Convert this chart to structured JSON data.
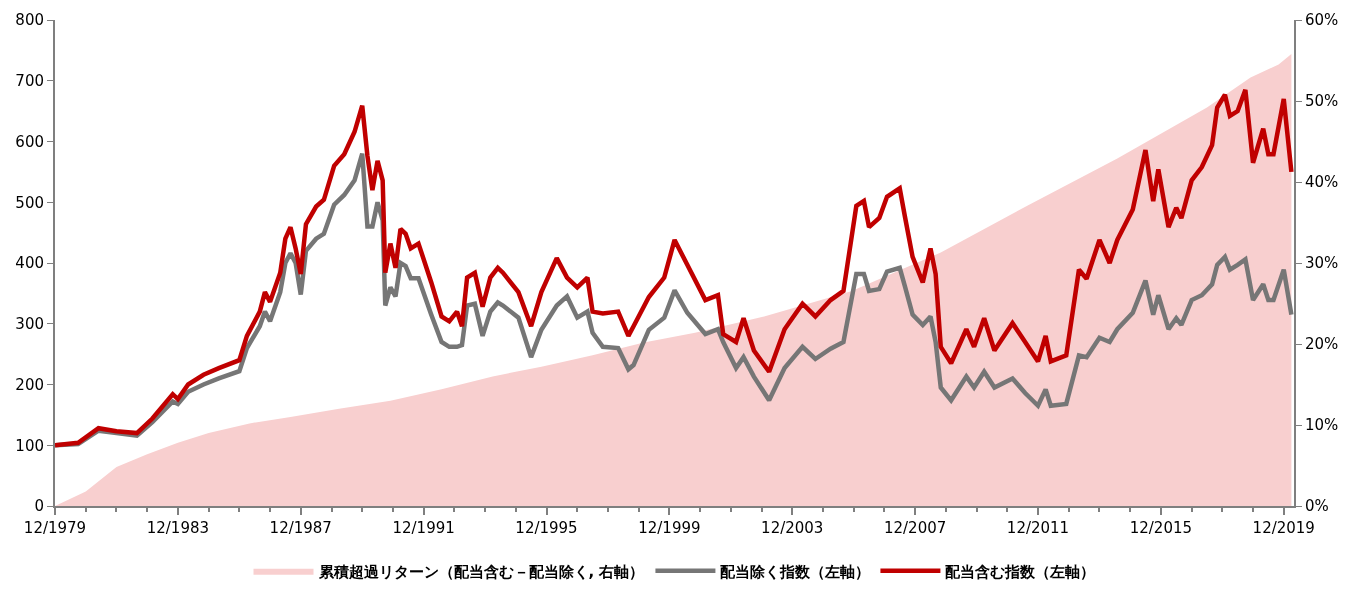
{
  "chart_data": {
    "type": "line",
    "x": [
      "1979-12",
      "1980-09",
      "1981-05",
      "1981-12",
      "1982-08",
      "1983-02",
      "1983-10",
      "1983-12",
      "1984-04",
      "1984-10",
      "1985-04",
      "1985-12",
      "1986-03",
      "1986-08",
      "1986-10",
      "1986-12",
      "1987-04",
      "1987-06",
      "1987-08",
      "1987-10",
      "1987-12",
      "1988-02",
      "1988-06",
      "1988-09",
      "1989-01",
      "1989-05",
      "1989-09",
      "1989-12",
      "1990-02",
      "1990-04",
      "1990-06",
      "1990-08",
      "1990-09",
      "1990-11",
      "1991-01",
      "1991-03",
      "1991-05",
      "1991-07",
      "1991-10",
      "1992-03",
      "1992-07",
      "1992-10",
      "1993-01",
      "1993-03",
      "1993-05",
      "1993-08",
      "1993-11",
      "1994-02",
      "1994-05",
      "1994-07",
      "1995-01",
      "1995-06",
      "1995-10",
      "1996-04",
      "1996-08",
      "1996-12",
      "1997-04",
      "1997-06",
      "1997-10",
      "1998-04",
      "1998-08",
      "1998-10",
      "1999-04",
      "1999-10",
      "2000-02",
      "2000-07",
      "2001-02",
      "2001-07",
      "2001-09",
      "2002-02",
      "2002-05",
      "2002-09",
      "2003-03",
      "2003-09",
      "2004-04",
      "2004-09",
      "2005-03",
      "2005-08",
      "2006-01",
      "2006-04",
      "2006-06",
      "2006-10",
      "2007-01",
      "2007-06",
      "2007-08",
      "2007-11",
      "2008-03",
      "2008-06",
      "2008-08",
      "2008-10",
      "2009-02",
      "2009-08",
      "2009-11",
      "2010-03",
      "2010-07",
      "2011-02",
      "2011-07",
      "2011-12",
      "2012-03",
      "2012-05",
      "2012-11",
      "2013-04",
      "2013-07",
      "2013-12",
      "2014-04",
      "2014-07",
      "2015-01",
      "2015-06",
      "2015-09",
      "2015-11",
      "2016-03",
      "2016-06",
      "2016-08",
      "2016-12",
      "2017-04",
      "2017-08",
      "2017-10",
      "2018-01",
      "2018-03",
      "2018-06",
      "2018-09",
      "2018-12",
      "2019-04",
      "2019-06",
      "2019-08",
      "2019-12",
      "2020-03"
    ],
    "series": [
      {
        "name": "累積超過リターン（配当含む－配当除く, 右軸）",
        "type": "area",
        "axis": "y2",
        "color": "#f8cfcf",
        "x": [
          "1979-12",
          "1980-12",
          "1981-12",
          "1982-12",
          "1983-12",
          "1984-12",
          "1986-04",
          "1987-08",
          "1989-03",
          "1990-11",
          "1992-07",
          "1994-03",
          "1995-10",
          "1997-06",
          "1999-02",
          "2000-10",
          "2003-01",
          "2005-11",
          "2008-10",
          "2011-08",
          "2014-07",
          "2017-06",
          "2018-11",
          "2019-10",
          "2020-03"
        ],
        "values": [
          0,
          1.8,
          4.8,
          6.4,
          7.8,
          9,
          10.2,
          11,
          12,
          13,
          14.4,
          16,
          17.2,
          18.6,
          20.2,
          21.4,
          23.4,
          26.5,
          31.3,
          37.1,
          42.9,
          49.2,
          52.9,
          54.5,
          55.8
        ]
      },
      {
        "name": "配当除く指数（左軸）",
        "color": "#767676",
        "values": [
          100,
          102,
          124,
          120,
          116,
          138,
          172,
          168,
          188,
          200,
          210,
          222,
          260,
          296,
          320,
          304,
          352,
          400,
          416,
          400,
          348,
          420,
          440,
          448,
          496,
          512,
          536,
          580,
          460,
          460,
          500,
          470,
          330,
          360,
          345,
          400,
          395,
          375,
          375,
          315,
          270,
          262,
          262,
          265,
          330,
          333,
          280,
          320,
          335,
          330,
          310,
          245,
          290,
          330,
          345,
          310,
          320,
          285,
          262,
          260,
          225,
          232,
          290,
          310,
          355,
          318,
          283,
          291,
          270,
          227,
          245,
          213,
          174,
          227,
          262,
          242,
          259,
          270,
          382,
          382,
          354,
          357,
          386,
          392,
          362,
          315,
          298,
          312,
          270,
          195,
          174,
          213,
          195,
          221,
          195,
          210,
          186,
          165,
          192,
          165,
          168,
          248,
          245,
          277,
          270,
          291,
          318,
          371,
          315,
          347,
          291,
          309,
          298,
          339,
          347,
          365,
          397,
          410,
          389,
          397,
          406,
          339,
          365,
          339,
          339,
          389,
          315
        ]
      },
      {
        "name": "配当含む指数（左軸）",
        "color": "#c00000",
        "values": [
          100,
          104,
          128,
          123,
          120,
          144,
          184,
          176,
          200,
          216,
          227,
          240,
          280,
          320,
          352,
          336,
          384,
          440,
          459,
          424,
          382,
          464,
          493,
          504,
          560,
          579,
          616,
          659,
          576,
          520,
          568,
          536,
          384,
          432,
          392,
          456,
          448,
          424,
          432,
          368,
          312,
          304,
          320,
          296,
          376,
          384,
          328,
          376,
          392,
          384,
          352,
          296,
          352,
          408,
          376,
          360,
          376,
          320,
          317,
          320,
          280,
          296,
          344,
          376,
          438,
          397,
          339,
          347,
          283,
          270,
          309,
          256,
          221,
          291,
          333,
          312,
          339,
          354,
          494,
          502,
          459,
          474,
          509,
          523,
          477,
          410,
          368,
          424,
          382,
          262,
          235,
          291,
          262,
          309,
          256,
          301,
          270,
          238,
          280,
          238,
          248,
          389,
          374,
          438,
          400,
          438,
          488,
          586,
          502,
          554,
          459,
          491,
          474,
          536,
          558,
          594,
          656,
          677,
          642,
          650,
          685,
          565,
          621,
          579,
          579,
          670,
          550
        ]
      }
    ],
    "xlim": [
      "1979-12",
      "2020-04"
    ],
    "xticks": [
      {
        "value": "1979-12",
        "label": "12/1979"
      },
      {
        "value": "1983-12",
        "label": "12/1983"
      },
      {
        "value": "1987-12",
        "label": "12/1987"
      },
      {
        "value": "1991-12",
        "label": "12/1991"
      },
      {
        "value": "1995-12",
        "label": "12/1995"
      },
      {
        "value": "1999-12",
        "label": "12/1999"
      },
      {
        "value": "2003-12",
        "label": "12/2003"
      },
      {
        "value": "2007-12",
        "label": "12/2007"
      },
      {
        "value": "2011-12",
        "label": "12/2011"
      },
      {
        "value": "2015-12",
        "label": "12/2015"
      },
      {
        "value": "2019-12",
        "label": "12/2019"
      }
    ],
    "ylim": [
      0,
      800
    ],
    "yticks": [
      0,
      100,
      200,
      300,
      400,
      500,
      600,
      700,
      800
    ],
    "y2lim": [
      0,
      60
    ],
    "y2ticks": [
      {
        "value": 0,
        "label": "0%"
      },
      {
        "value": 10,
        "label": "10%"
      },
      {
        "value": 20,
        "label": "20%"
      },
      {
        "value": 30,
        "label": "30%"
      },
      {
        "value": 40,
        "label": "40%"
      },
      {
        "value": 50,
        "label": "50%"
      },
      {
        "value": 60,
        "label": "60%"
      }
    ],
    "legend": "bottom",
    "marker": "none",
    "line_style": "solid"
  }
}
